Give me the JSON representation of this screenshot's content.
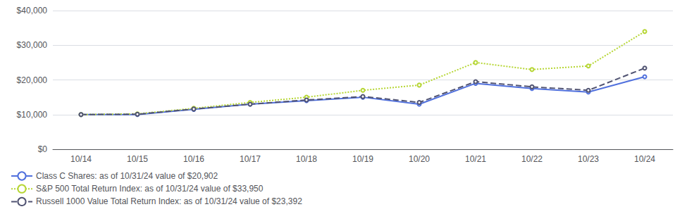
{
  "chart_data": {
    "type": "line",
    "categories": [
      "10/14",
      "10/15",
      "10/16",
      "10/17",
      "10/18",
      "10/19",
      "10/20",
      "10/21",
      "10/22",
      "10/23",
      "10/24"
    ],
    "series": [
      {
        "name": "Class C Shares: as of 10/31/24 value of $20,902",
        "line_style": "solid",
        "values": [
          10000,
          10000,
          11500,
          13000,
          14000,
          15000,
          13000,
          19000,
          17500,
          16500,
          20902
        ]
      },
      {
        "name": "S&P 500 Total Return Index: as of 10/31/24 value of $33,950",
        "line_style": "dotted",
        "values": [
          10000,
          10200,
          11800,
          13500,
          15000,
          17000,
          18500,
          25000,
          23000,
          24000,
          33950
        ]
      },
      {
        "name": "Russell 1000 Value Total Return Index: as of 10/31/24 value of $23,392",
        "line_style": "dashed",
        "values": [
          10000,
          10100,
          11600,
          13000,
          14200,
          15200,
          13500,
          19500,
          18000,
          17000,
          23392
        ]
      }
    ],
    "ylim": [
      0,
      40000
    ],
    "yticks": [
      {
        "value": 0,
        "label": "$0"
      },
      {
        "value": 10000,
        "label": "$10,000"
      },
      {
        "value": 20000,
        "label": "$20,000"
      },
      {
        "value": 30000,
        "label": "$30,000"
      },
      {
        "value": 40000,
        "label": "$40,000"
      }
    ],
    "grid": true,
    "legend": "lower left"
  }
}
